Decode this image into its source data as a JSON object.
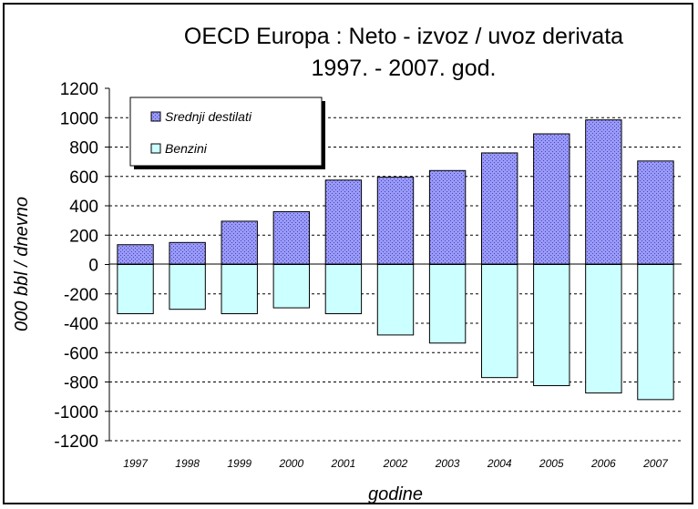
{
  "chart_data": {
    "type": "bar",
    "title_lines": [
      "OECD Europa : Neto - izvoz / uvoz derivata",
      "1997. - 2007. god."
    ],
    "xlabel": "godine",
    "ylabel": "000 bbl / dnevno",
    "ylim": [
      -1200,
      1200
    ],
    "yticks": [
      "1200",
      "1000",
      "800",
      "600",
      "400",
      "200",
      "0",
      "-200",
      "-400",
      "-600",
      "-800",
      "-1000",
      "-1200"
    ],
    "categories": [
      "1997",
      "1998",
      "1999",
      "2000",
      "2001",
      "2002",
      "2003",
      "2004",
      "2005",
      "2006",
      "2007"
    ],
    "stacked": true,
    "grid": true,
    "legend_position": "top-left",
    "series": [
      {
        "name": "Srednji destilati",
        "color": "#9999ff",
        "pattern": "crosshatch",
        "values": [
          135,
          150,
          295,
          360,
          575,
          595,
          640,
          760,
          890,
          985,
          705
        ]
      },
      {
        "name": "Benzini",
        "color": "#ccffff",
        "pattern": "solid",
        "values": [
          -335,
          -305,
          -335,
          -295,
          -335,
          -480,
          -535,
          -770,
          -825,
          -875,
          -920
        ]
      }
    ]
  }
}
